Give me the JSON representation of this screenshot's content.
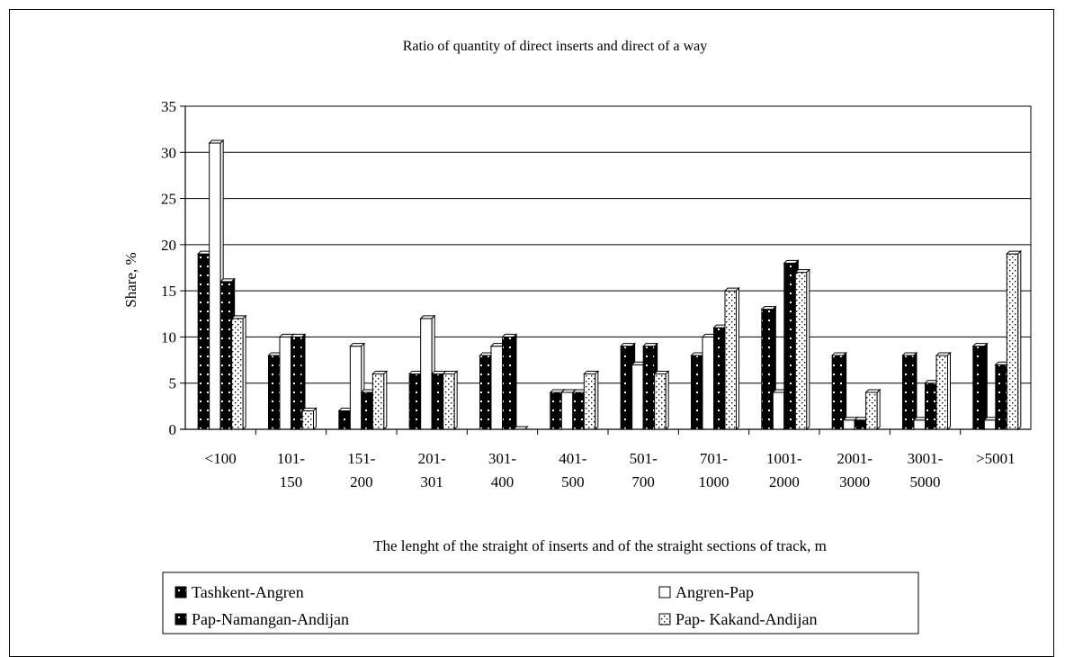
{
  "chart_data": {
    "type": "bar",
    "title": "Ratio of quantity of direct inserts and direct of a way",
    "xlabel": "The lenght of the straight of inserts and of the straight sections of track, m",
    "ylabel": "Share, %",
    "ylim": [
      0,
      35
    ],
    "yticks": [
      0,
      5,
      10,
      15,
      20,
      25,
      30,
      35
    ],
    "grid": true,
    "legend_position": "bottom",
    "categories": [
      [
        "<100"
      ],
      [
        "101-",
        "150"
      ],
      [
        "151-",
        "200"
      ],
      [
        "201-",
        "301"
      ],
      [
        "301-",
        "400"
      ],
      [
        "401-",
        "500"
      ],
      [
        "501-",
        "700"
      ],
      [
        "701-",
        "1000"
      ],
      [
        "1001-",
        "2000"
      ],
      [
        "2001-",
        "3000"
      ],
      [
        "3001-",
        "5000"
      ],
      [
        ">5001"
      ]
    ],
    "series": [
      {
        "name": "Tashkent-Angren",
        "color": "#000000",
        "pattern": "black-dots",
        "values": [
          19,
          8,
          2,
          6,
          8,
          4,
          9,
          8,
          13,
          8,
          8,
          9
        ]
      },
      {
        "name": "Angren-Pap",
        "color": "#ffffff",
        "pattern": "white",
        "values": [
          31,
          10,
          9,
          12,
          9,
          4,
          7,
          10,
          4,
          1,
          1,
          1
        ]
      },
      {
        "name": "Pap-Namangan-Andijan",
        "color": "#000000",
        "pattern": "black-dots",
        "values": [
          16,
          10,
          4,
          6,
          10,
          4,
          9,
          11,
          18,
          1,
          5,
          7
        ]
      },
      {
        "name": "Pap- Kakand-Andijan",
        "color": "#ffffff",
        "pattern": "dotted",
        "values": [
          12,
          2,
          6,
          6,
          0,
          6,
          6,
          15,
          17,
          4,
          8,
          19
        ]
      }
    ]
  }
}
